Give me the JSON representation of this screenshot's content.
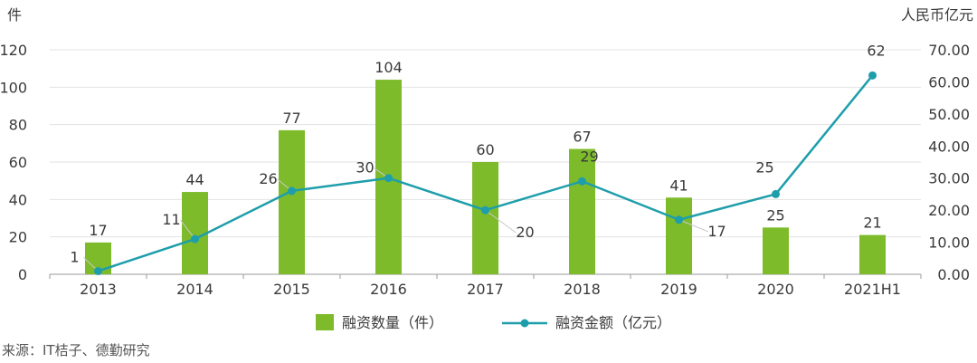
{
  "chart_data": {
    "type": "bar+line",
    "categories": [
      "2013",
      "2014",
      "2015",
      "2016",
      "2017",
      "2018",
      "2019",
      "2020",
      "2021H1"
    ],
    "series": [
      {
        "name": "融资数量（件）",
        "type": "bar",
        "axis": "left",
        "values": [
          17,
          44,
          77,
          104,
          60,
          67,
          41,
          25,
          21
        ],
        "labels": [
          "17",
          "44",
          "77",
          "104",
          "60",
          "67",
          "41",
          "25",
          "21"
        ],
        "color": "#7dbb2a"
      },
      {
        "name": "融资金额（亿元）",
        "type": "line",
        "axis": "right",
        "values": [
          1,
          11,
          26,
          30,
          20,
          29,
          17,
          25,
          62
        ],
        "labels": [
          "1",
          "11",
          "26",
          "30",
          "20",
          "29",
          "17",
          "25",
          "62"
        ],
        "color": "#1e9eab"
      }
    ],
    "y_left": {
      "unit": "件",
      "range": [
        0,
        120
      ],
      "ticks": [
        "0",
        "20",
        "40",
        "60",
        "80",
        "100",
        "120"
      ]
    },
    "y_right": {
      "unit": "人民币亿元",
      "range": [
        0,
        70
      ],
      "ticks": [
        "0.00",
        "10.00",
        "20.00",
        "30.00",
        "40.00",
        "50.00",
        "60.00",
        "70.00"
      ]
    },
    "grid": true,
    "legend": "bottom-center",
    "source": "来源：IT桔子、德勤研究"
  }
}
